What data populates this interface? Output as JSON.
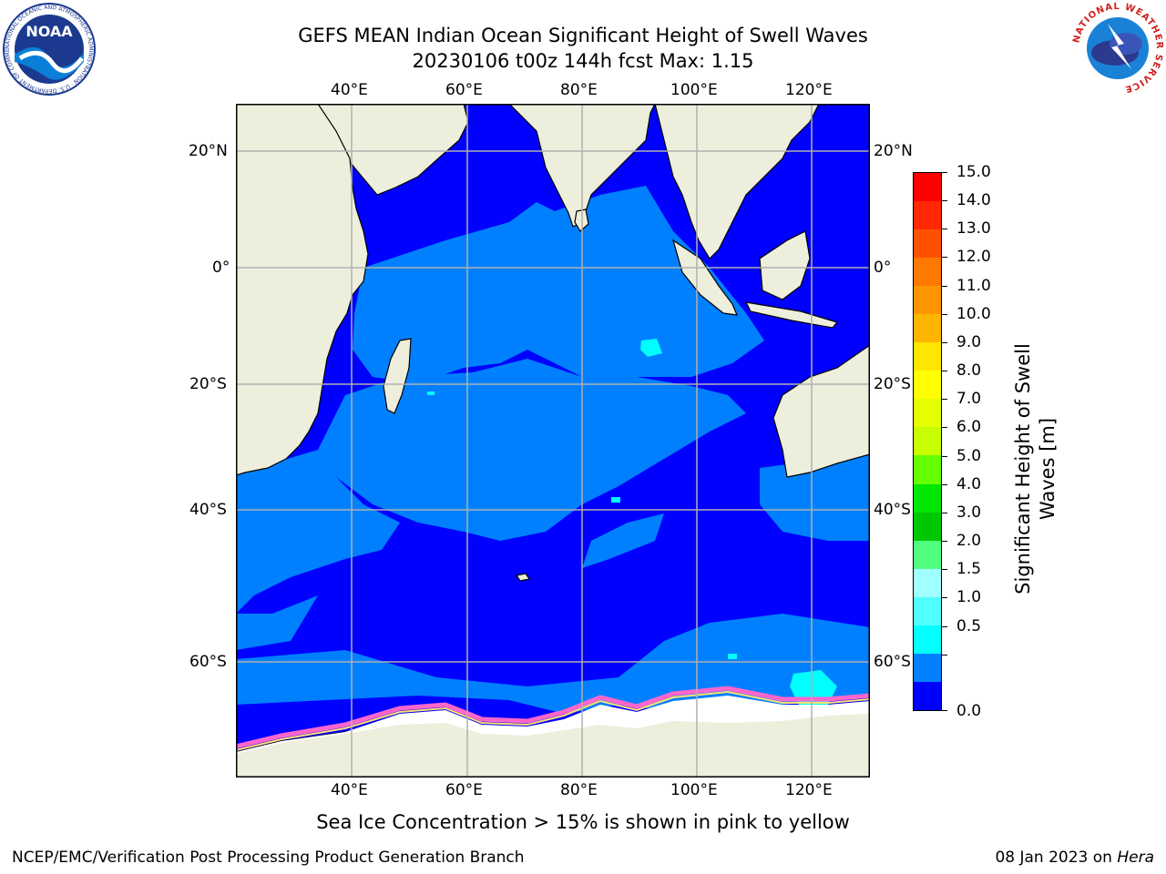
{
  "title": {
    "line1": "GEFS MEAN Indian Ocean Significant Height of Swell Waves",
    "line2": "20230106 t00z 144h fcst   Max: 1.15"
  },
  "map": {
    "lon_ticks": [
      "40°E",
      "60°E",
      "80°E",
      "100°E",
      "120°E"
    ],
    "lat_ticks": [
      "20°N",
      "0°",
      "20°S",
      "40°S",
      "60°S"
    ],
    "colors": {
      "land": "#eeeedd",
      "water_low": "#0000ff",
      "water_mid": "#0080ff",
      "water_cyan": "#00ffff",
      "sea_ice": "#ffffff",
      "ice_edge": "#ff66cc",
      "grid": "#b0b0b0"
    }
  },
  "colorbar": {
    "label": "Significant Height of Swell Waves [m]",
    "label_line1": "Significant Height of Swell",
    "label_line2": "Waves [m]",
    "ticks": [
      "15.0",
      "14.0",
      "13.0",
      "12.0",
      "11.0",
      "10.0",
      "9.0",
      "8.0",
      "7.0",
      "6.0",
      "5.0",
      "4.0",
      "3.0",
      "2.0",
      "1.5",
      "1.0",
      "0.5",
      "0.0"
    ],
    "colors": [
      "#ff0000",
      "#ff2800",
      "#ff5000",
      "#ff7800",
      "#ff9600",
      "#ffb400",
      "#ffe600",
      "#ffff00",
      "#e6ff00",
      "#c8ff00",
      "#64ff00",
      "#00e600",
      "#00c800",
      "#50ff80",
      "#a0ffff",
      "#50ffff",
      "#00ffff",
      "#0080ff",
      "#0000ff"
    ]
  },
  "caption": "Sea Ice Concentration > 15% is shown in pink to yellow",
  "footer": {
    "left": "NCEP/EMC/Verification Post Processing Product Generation Branch",
    "right_prefix": "08 Jan 2023 on ",
    "right_host": "Hera"
  },
  "logos": {
    "noaa": "NOAA",
    "noaa_ring": "NATIONAL OCEANIC AND ATMOSPHERIC ADMINISTRATION · U.S. DEPARTMENT OF COMMERCE",
    "nws_ring": "NATIONAL WEATHER SERVICE"
  }
}
